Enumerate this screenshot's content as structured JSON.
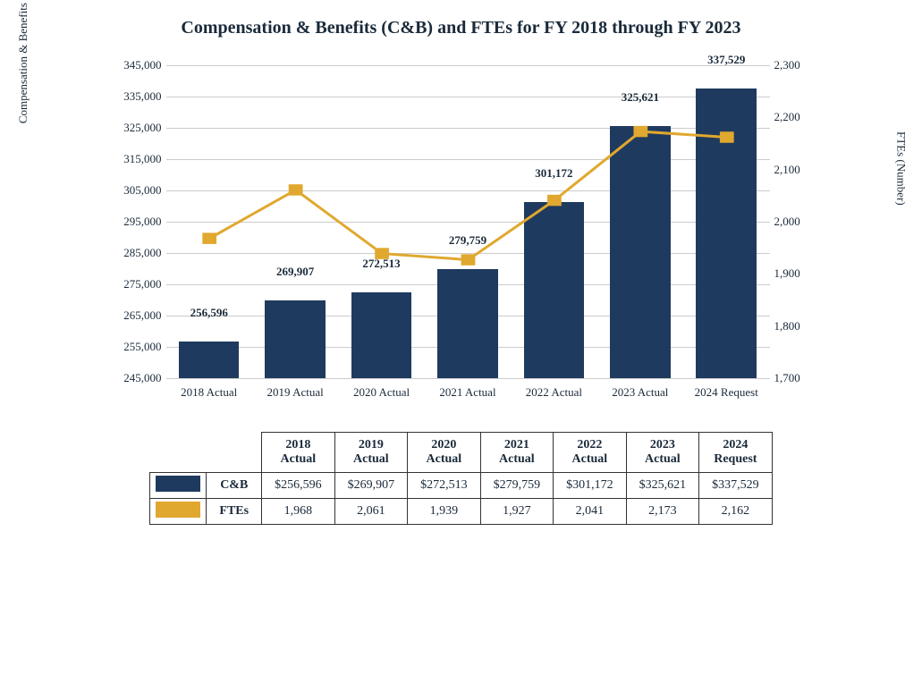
{
  "title": "Compensation & Benefits (C&B) and FTEs for FY 2018 through FY 2023",
  "title_fontsize": 20,
  "chart": {
    "type": "bar+line",
    "categories": [
      "2018 Actual",
      "2019 Actual",
      "2020 Actual",
      "2021 Actual",
      "2022 Actual",
      "2023 Actual",
      "2024 Request"
    ],
    "bar_series": {
      "label": "C&B",
      "values": [
        256596,
        269907,
        272513,
        279759,
        301172,
        325621,
        337529
      ],
      "value_labels": [
        "256,596",
        "269,907",
        "272,513",
        "279,759",
        "301,172",
        "325,621",
        "337,529"
      ],
      "color": "#1f3a5f"
    },
    "line_series": {
      "label": "FTEs",
      "values": [
        1968,
        2061,
        1939,
        1927,
        2041,
        2173,
        2162
      ],
      "color": "#e0a82e",
      "marker": "square",
      "marker_size": 9,
      "line_width": 3
    },
    "y_left": {
      "label": "Compensation & Benefits (In thousands of dollars)",
      "min": 245000,
      "max": 345000,
      "ticks": [
        245000,
        255000,
        265000,
        275000,
        285000,
        295000,
        305000,
        315000,
        325000,
        335000,
        345000
      ],
      "tick_labels": [
        "245,000",
        "255,000",
        "265,000",
        "275,000",
        "285,000",
        "295,000",
        "305,000",
        "315,000",
        "325,000",
        "335,000",
        "345,000"
      ]
    },
    "y_right": {
      "label": "FTEs (Number)",
      "min": 1700,
      "max": 2300,
      "ticks": [
        1700,
        1800,
        1900,
        2000,
        2100,
        2200,
        2300
      ],
      "tick_labels": [
        "1,700",
        "1,800",
        "1,900",
        "2,000",
        "2,100",
        "2,200",
        "2,300"
      ]
    },
    "grid_color": "#cccccc",
    "background_color": "#ffffff",
    "x_label_fontsize": 13,
    "y_tick_fontsize": 13,
    "bar_label_fontsize": 13
  },
  "table": {
    "columns": [
      "2018 Actual",
      "2019 Actual",
      "2020 Actual",
      "2021 Actual",
      "2022 Actual",
      "2023 Actual",
      "2024 Request"
    ],
    "rows": [
      {
        "swatch_color": "#1f3a5f",
        "label": "C&B",
        "cells": [
          "$256,596",
          "$269,907",
          "$272,513",
          "$279,759",
          "$301,172",
          "$325,621",
          "$337,529"
        ]
      },
      {
        "swatch_color": "#e0a82e",
        "label": "FTEs",
        "cells": [
          "1,968",
          "2,061",
          "1,939",
          "1,927",
          "2,041",
          "2,173",
          "2,162"
        ]
      }
    ]
  }
}
